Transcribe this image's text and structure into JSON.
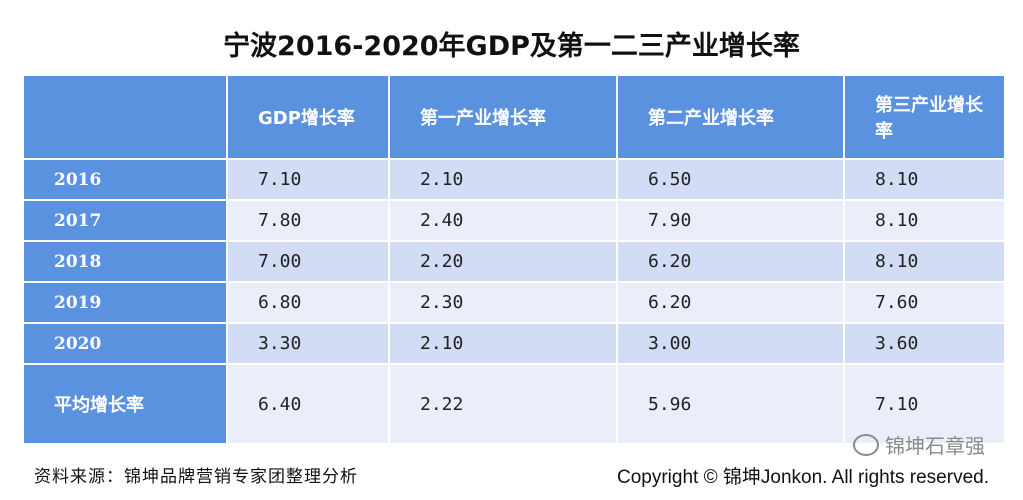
{
  "title": "宁波2016-2020年GDP及第一二三产业增长率",
  "table": {
    "headers": [
      "",
      "GDP增长率",
      "第一产业增长率",
      "第二产业增长率",
      "第三产业增长率"
    ],
    "rows": [
      {
        "label": "2016",
        "values": [
          "7.10",
          "2.10",
          "6.50",
          "8.10"
        ]
      },
      {
        "label": "2017",
        "values": [
          "7.80",
          "2.40",
          "7.90",
          "8.10"
        ]
      },
      {
        "label": "2018",
        "values": [
          "7.00",
          "2.20",
          "6.20",
          "8.10"
        ]
      },
      {
        "label": "2019",
        "values": [
          "6.80",
          "2.30",
          "6.20",
          "7.60"
        ]
      },
      {
        "label": "2020",
        "values": [
          "3.30",
          "2.10",
          "3.00",
          "3.60"
        ]
      },
      {
        "label": "平均增长率",
        "values": [
          "6.40",
          "2.22",
          "5.96",
          "7.10"
        ]
      }
    ]
  },
  "source": "资料来源：锦坤品牌营销专家团整理分析",
  "copyright": "Copyright © 锦坤Jonkon. All rights reserved.",
  "watermark": "锦坤石章强",
  "icons": {
    "watermark": "wechat-icon"
  }
}
